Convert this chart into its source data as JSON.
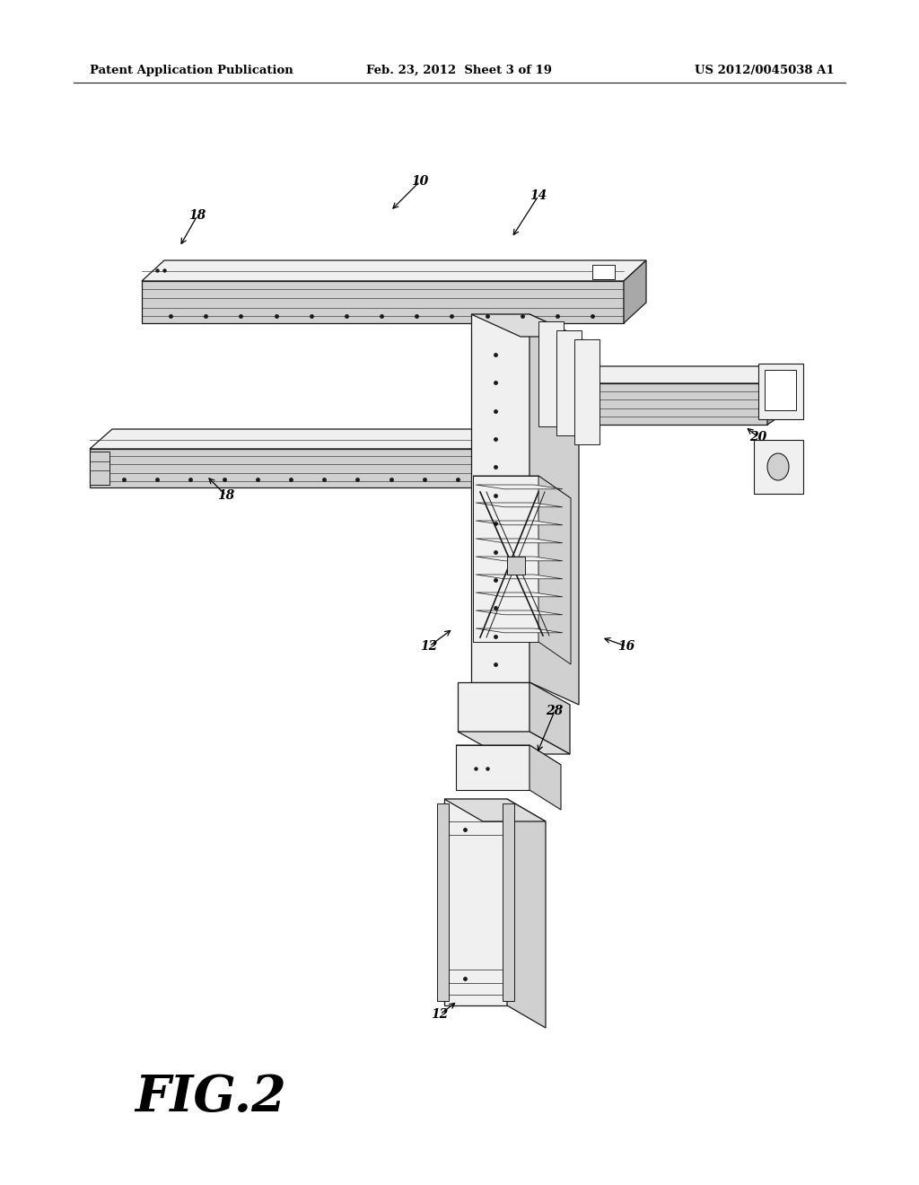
{
  "background": "#ffffff",
  "lc": "#1a1a1a",
  "fl": "#f0f0f0",
  "fm": "#d0d0d0",
  "fd": "#a8a8a8",
  "header_left": "Patent Application Publication",
  "header_mid": "Feb. 23, 2012  Sheet 3 of 19",
  "header_right": "US 2012/0045038 A1",
  "fig_label": "FIG.2"
}
